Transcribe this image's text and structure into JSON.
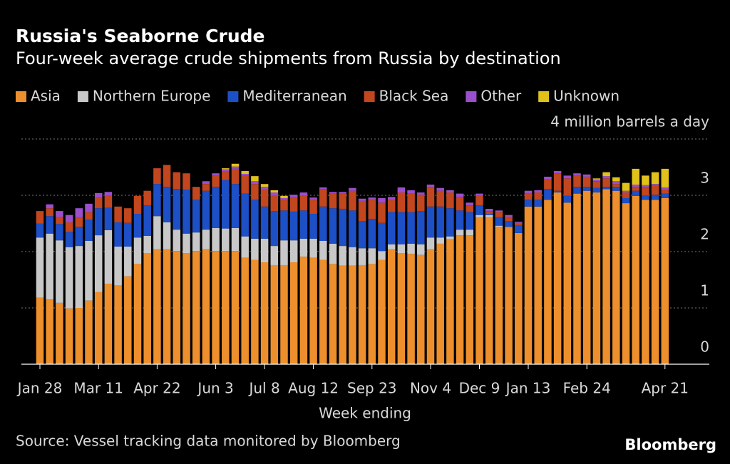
{
  "chart_data": {
    "type": "stacked-bar",
    "title": "Russia's Seaborne Crude",
    "subtitle": "Four-week average crude shipments from Russia by destination",
    "xlabel": "Week ending",
    "source": "Source: Vessel tracking data monitored by Bloomberg",
    "brand": "Bloomberg",
    "categories": [
      "Jan 28",
      null,
      null,
      null,
      null,
      null,
      "Mar 11",
      null,
      null,
      null,
      null,
      null,
      "Apr 22",
      null,
      null,
      null,
      null,
      null,
      "Jun 3",
      null,
      null,
      null,
      null,
      "Jul 8",
      null,
      null,
      null,
      null,
      "Aug 12",
      null,
      null,
      null,
      null,
      null,
      "Sep 23",
      null,
      null,
      null,
      null,
      null,
      "Nov 4",
      null,
      null,
      null,
      null,
      "Dec 9",
      null,
      null,
      null,
      null,
      "Jan 13",
      null,
      null,
      null,
      null,
      null,
      "Feb 24",
      null,
      null,
      null,
      null,
      null,
      null,
      null,
      "Apr 21"
    ],
    "series": [
      {
        "name": "Asia",
        "color": "#ec8f2c",
        "values": [
          1.18,
          1.15,
          1.09,
          0.99,
          1.0,
          1.13,
          1.28,
          1.43,
          1.4,
          1.56,
          1.78,
          1.97,
          2.04,
          2.04,
          2.01,
          1.97,
          2.01,
          2.04,
          2.01,
          2.01,
          2.01,
          1.89,
          1.85,
          1.81,
          1.76,
          1.76,
          1.81,
          1.91,
          1.89,
          1.85,
          1.78,
          1.75,
          1.75,
          1.76,
          1.78,
          1.85,
          2.04,
          1.97,
          1.96,
          1.94,
          2.04,
          2.14,
          2.22,
          2.29,
          2.29,
          2.61,
          2.61,
          2.44,
          2.44,
          2.33,
          2.8,
          2.8,
          2.92,
          3.05,
          2.87,
          3.03,
          3.08,
          3.05,
          3.11,
          3.08,
          2.86,
          2.99,
          2.92,
          2.92,
          2.95
        ]
      },
      {
        "name": "Northern Europe",
        "color": "#c8c8c8",
        "values": [
          1.07,
          1.17,
          1.11,
          1.09,
          1.1,
          1.06,
          1.01,
          0.95,
          0.69,
          0.53,
          0.47,
          0.31,
          0.59,
          0.48,
          0.38,
          0.35,
          0.33,
          0.35,
          0.41,
          0.4,
          0.41,
          0.38,
          0.38,
          0.42,
          0.34,
          0.44,
          0.39,
          0.32,
          0.34,
          0.34,
          0.36,
          0.35,
          0.33,
          0.3,
          0.28,
          0.16,
          0.09,
          0.16,
          0.18,
          0.19,
          0.21,
          0.11,
          0.05,
          0.1,
          0.1,
          0.04,
          0.04,
          0.02,
          0,
          0,
          0,
          0,
          0,
          0,
          0,
          0,
          0,
          0,
          0,
          0,
          0,
          0,
          0,
          0,
          0
        ]
      },
      {
        "name": "Mediterranean",
        "color": "#1d4fc6",
        "values": [
          0.25,
          0.31,
          0.29,
          0.27,
          0.34,
          0.38,
          0.48,
          0.4,
          0.43,
          0.42,
          0.42,
          0.54,
          0.57,
          0.63,
          0.72,
          0.78,
          0.58,
          0.69,
          0.73,
          0.86,
          0.78,
          0.76,
          0.69,
          0.57,
          0.62,
          0.53,
          0.51,
          0.5,
          0.44,
          0.61,
          0.63,
          0.66,
          0.65,
          0.48,
          0.52,
          0.5,
          0.57,
          0.57,
          0.56,
          0.59,
          0.55,
          0.55,
          0.5,
          0.34,
          0.31,
          0.17,
          0.02,
          0.15,
          0.1,
          0.14,
          0.12,
          0.12,
          0.19,
          0.03,
          0.12,
          0.12,
          0.07,
          0.08,
          0.04,
          0.07,
          0.09,
          0.09,
          0.08,
          0.09,
          0.08
        ]
      },
      {
        "name": "Black Sea",
        "color": "#c2461e",
        "values": [
          0.22,
          0.14,
          0.13,
          0.17,
          0.17,
          0.13,
          0.19,
          0.22,
          0.28,
          0.26,
          0.32,
          0.26,
          0.28,
          0.39,
          0.3,
          0.29,
          0.23,
          0.12,
          0.2,
          0.16,
          0.27,
          0.32,
          0.28,
          0.3,
          0.28,
          0.19,
          0.25,
          0.27,
          0.25,
          0.31,
          0.26,
          0.27,
          0.35,
          0.36,
          0.34,
          0.36,
          0.22,
          0.35,
          0.33,
          0.29,
          0.35,
          0.28,
          0.28,
          0.24,
          0.12,
          0.18,
          0.05,
          0.09,
          0.08,
          0.04,
          0.11,
          0.13,
          0.17,
          0.31,
          0.31,
          0.2,
          0.18,
          0.12,
          0.15,
          0.05,
          0.1,
          0.07,
          0.15,
          0.17,
          0.07
        ]
      },
      {
        "name": "Other",
        "color": "#9b4fcc",
        "values": [
          0,
          0.07,
          0.1,
          0.13,
          0.16,
          0.15,
          0.08,
          0.06,
          0,
          0,
          0,
          0,
          0,
          0,
          0,
          0,
          0,
          0.05,
          0.04,
          0.03,
          0.04,
          0.03,
          0.05,
          0.05,
          0.05,
          0.03,
          0.05,
          0.05,
          0.04,
          0.03,
          0.03,
          0.03,
          0.05,
          0.04,
          0.04,
          0.08,
          0.05,
          0.09,
          0.06,
          0.04,
          0.04,
          0.05,
          0.04,
          0.06,
          0.05,
          0.03,
          0.04,
          0.03,
          0.03,
          0.02,
          0.05,
          0.04,
          0.05,
          0.04,
          0.05,
          0.04,
          0.04,
          0.03,
          0.04,
          0.05,
          0.03,
          0.04,
          0.03,
          0.02,
          0.04
        ]
      },
      {
        "name": "Unknown",
        "color": "#e1c21b",
        "values": [
          0,
          0,
          0,
          0,
          0,
          0,
          0,
          0,
          0,
          0,
          0,
          0,
          0,
          0,
          0,
          0,
          0,
          0,
          0,
          0.02,
          0.05,
          0.05,
          0.09,
          0.05,
          0.04,
          0.04,
          0,
          0,
          0,
          0,
          0,
          0,
          0,
          0,
          0,
          0,
          0,
          0,
          0,
          0,
          0,
          0,
          0,
          0,
          0,
          0,
          0,
          0,
          0,
          0,
          0,
          0,
          0,
          0,
          0,
          0,
          0,
          0.02,
          0.07,
          0.07,
          0.14,
          0.28,
          0.17,
          0.21,
          0.33
        ]
      }
    ],
    "ylim": [
      0,
      4
    ],
    "yticks": [
      0,
      1,
      2,
      3,
      {
        "value": 4,
        "label": "4 million barrels a day"
      }
    ],
    "grid": true
  }
}
